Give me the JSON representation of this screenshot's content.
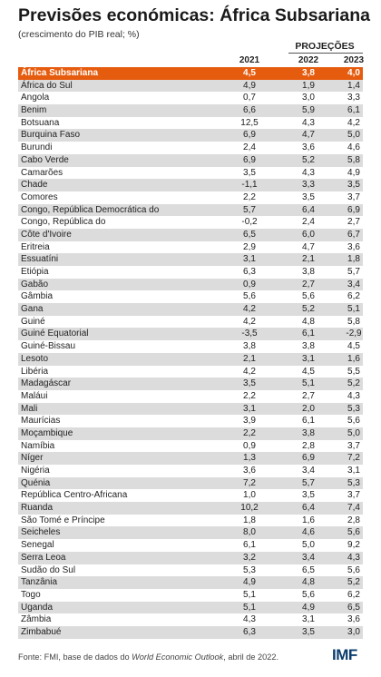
{
  "title": "Previsões económicas: África Subsariana",
  "subtitle": "(crescimento do PIB real; %)",
  "projections_label": "PROJEÇÕES",
  "footer": {
    "prefix": "Fonte: FMI, base de dados do ",
    "publication": "World Economic Outlook",
    "suffix": ", abril de 2022."
  },
  "logo": "IMF",
  "colors": {
    "highlight": "#e65c0f",
    "stripe": "#dcdcdc",
    "logo": "#0b3d6e"
  },
  "chart_data": {
    "type": "table",
    "columns": [
      "2021",
      "2022",
      "2023"
    ],
    "rows": [
      {
        "name": "África Subsariana",
        "values": [
          "4,5",
          "3,8",
          "4,0"
        ],
        "highlight": true
      },
      {
        "name": "África do Sul",
        "values": [
          "4,9",
          "1,9",
          "1,4"
        ]
      },
      {
        "name": "Angola",
        "values": [
          "0,7",
          "3,0",
          "3,3"
        ]
      },
      {
        "name": "Benim",
        "values": [
          "6,6",
          "5,9",
          "6,1"
        ]
      },
      {
        "name": "Botsuana",
        "values": [
          "12,5",
          "4,3",
          "4,2"
        ]
      },
      {
        "name": "Burquina Faso",
        "values": [
          "6,9",
          "4,7",
          "5,0"
        ]
      },
      {
        "name": "Burundi",
        "values": [
          "2,4",
          "3,6",
          "4,6"
        ]
      },
      {
        "name": "Cabo Verde",
        "values": [
          "6,9",
          "5,2",
          "5,8"
        ]
      },
      {
        "name": "Camarões",
        "values": [
          "3,5",
          "4,3",
          "4,9"
        ]
      },
      {
        "name": "Chade",
        "values": [
          "-1,1",
          "3,3",
          "3,5"
        ]
      },
      {
        "name": "Comores",
        "values": [
          "2,2",
          "3,5",
          "3,7"
        ]
      },
      {
        "name": "Congo, República Democrática do",
        "values": [
          "5,7",
          "6,4",
          "6,9"
        ]
      },
      {
        "name": "Congo, República do",
        "values": [
          "-0,2",
          "2,4",
          "2,7"
        ]
      },
      {
        "name": "Côte d'Ivoire",
        "values": [
          "6,5",
          "6,0",
          "6,7"
        ]
      },
      {
        "name": "Eritreia",
        "values": [
          "2,9",
          "4,7",
          "3,6"
        ]
      },
      {
        "name": "Essuatíni",
        "values": [
          "3,1",
          "2,1",
          "1,8"
        ]
      },
      {
        "name": "Etiópia",
        "values": [
          "6,3",
          "3,8",
          "5,7"
        ]
      },
      {
        "name": "Gabão",
        "values": [
          "0,9",
          "2,7",
          "3,4"
        ]
      },
      {
        "name": "Gâmbia",
        "values": [
          "5,6",
          "5,6",
          "6,2"
        ]
      },
      {
        "name": "Gana",
        "values": [
          "4,2",
          "5,2",
          "5,1"
        ]
      },
      {
        "name": "Guiné",
        "values": [
          "4,2",
          "4,8",
          "5,8"
        ]
      },
      {
        "name": "Guiné Equatorial",
        "values": [
          "-3,5",
          "6,1",
          "-2,9"
        ]
      },
      {
        "name": "Guiné-Bissau",
        "values": [
          "3,8",
          "3,8",
          "4,5"
        ]
      },
      {
        "name": "Lesoto",
        "values": [
          "2,1",
          "3,1",
          "1,6"
        ]
      },
      {
        "name": "Libéria",
        "values": [
          "4,2",
          "4,5",
          "5,5"
        ]
      },
      {
        "name": "Madagáscar",
        "values": [
          "3,5",
          "5,1",
          "5,2"
        ]
      },
      {
        "name": "Maláui",
        "values": [
          "2,2",
          "2,7",
          "4,3"
        ]
      },
      {
        "name": "Mali",
        "values": [
          "3,1",
          "2,0",
          "5,3"
        ]
      },
      {
        "name": "Maurícias",
        "values": [
          "3,9",
          "6,1",
          "5,6"
        ]
      },
      {
        "name": "Moçambique",
        "values": [
          "2,2",
          "3,8",
          "5,0"
        ]
      },
      {
        "name": "Namíbia",
        "values": [
          "0,9",
          "2,8",
          "3,7"
        ]
      },
      {
        "name": "Níger",
        "values": [
          "1,3",
          "6,9",
          "7,2"
        ]
      },
      {
        "name": "Nigéria",
        "values": [
          "3,6",
          "3,4",
          "3,1"
        ]
      },
      {
        "name": "Quénia",
        "values": [
          "7,2",
          "5,7",
          "5,3"
        ]
      },
      {
        "name": "República Centro-Africana",
        "values": [
          "1,0",
          "3,5",
          "3,7"
        ]
      },
      {
        "name": "Ruanda",
        "values": [
          "10,2",
          "6,4",
          "7,4"
        ]
      },
      {
        "name": "São Tomé e Príncipe",
        "values": [
          "1,8",
          "1,6",
          "2,8"
        ]
      },
      {
        "name": "Seicheles",
        "values": [
          "8,0",
          "4,6",
          "5,6"
        ]
      },
      {
        "name": "Senegal",
        "values": [
          "6,1",
          "5,0",
          "9,2"
        ]
      },
      {
        "name": "Serra Leoa",
        "values": [
          "3,2",
          "3,4",
          "4,3"
        ]
      },
      {
        "name": "Sudão do Sul",
        "values": [
          "5,3",
          "6,5",
          "5,6"
        ]
      },
      {
        "name": "Tanzânia",
        "values": [
          "4,9",
          "4,8",
          "5,2"
        ]
      },
      {
        "name": "Togo",
        "values": [
          "5,1",
          "5,6",
          "6,2"
        ]
      },
      {
        "name": "Uganda",
        "values": [
          "5,1",
          "4,9",
          "6,5"
        ]
      },
      {
        "name": "Zâmbia",
        "values": [
          "4,3",
          "3,1",
          "3,6"
        ]
      },
      {
        "name": "Zimbabué",
        "values": [
          "6,3",
          "3,5",
          "3,0"
        ]
      }
    ]
  }
}
